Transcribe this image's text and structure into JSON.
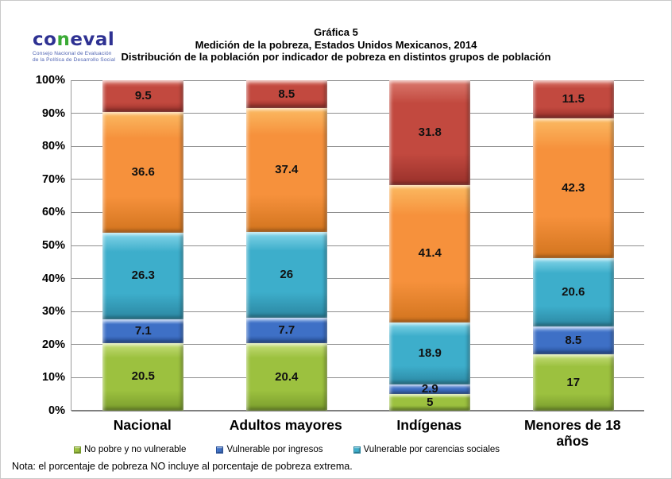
{
  "logo": {
    "part1": "co",
    "part2": "n",
    "part3": "eval",
    "tagline_line1": "Consejo Nacional de Evaluación",
    "tagline_line2": "de la Política de Desarrollo Social",
    "brand_blue": "#2e3192",
    "brand_green": "#3aaa35"
  },
  "title": {
    "line1": "Gráfica 5",
    "line2": "Medición de la pobreza, Estados Unidos Mexicanos, 2014",
    "line3": "Distribución de la población por indicador de pobreza en distintos grupos de población"
  },
  "note": "Nota: el porcentaje de pobreza NO incluye al porcentaje de pobreza extrema.",
  "chart_data": {
    "type": "bar",
    "stacked": true,
    "grid": true,
    "ylim": [
      0,
      100
    ],
    "y_ticks": [
      "0%",
      "10%",
      "20%",
      "30%",
      "40%",
      "50%",
      "60%",
      "70%",
      "80%",
      "90%",
      "100%"
    ],
    "categories": [
      "Nacional",
      "Adultos mayores",
      "Indígenas",
      "Menores de 18 años"
    ],
    "series": [
      {
        "name": "No pobre y no vulnerable",
        "in_legend": true,
        "color": "#9cc13f",
        "color_light": "#c6de7a",
        "color_dark": "#789b2c",
        "values": [
          20.5,
          20.4,
          5,
          17
        ]
      },
      {
        "name": "Vulnerable por ingresos",
        "in_legend": true,
        "color": "#3e70c6",
        "color_light": "#7fa7e4",
        "color_dark": "#28519b",
        "values": [
          7.1,
          7.7,
          2.9,
          8.5
        ]
      },
      {
        "name": "Vulnerable por carencias sociales",
        "in_legend": true,
        "color": "#3daecb",
        "color_light": "#85d6e9",
        "color_dark": "#2b86a1",
        "values": [
          26.3,
          26,
          18.9,
          20.6
        ]
      },
      {
        "name": "",
        "in_legend": false,
        "color": "#f6913c",
        "color_light": "#fbba62",
        "color_dark": "#d2741e",
        "values": [
          36.6,
          37.4,
          41.4,
          42.3
        ]
      },
      {
        "name": "",
        "in_legend": false,
        "color": "#c2493f",
        "color_light": "#da796d",
        "color_dark": "#98302a",
        "values": [
          9.5,
          8.5,
          31.8,
          11.5
        ]
      }
    ],
    "legend_position": "bottom"
  }
}
